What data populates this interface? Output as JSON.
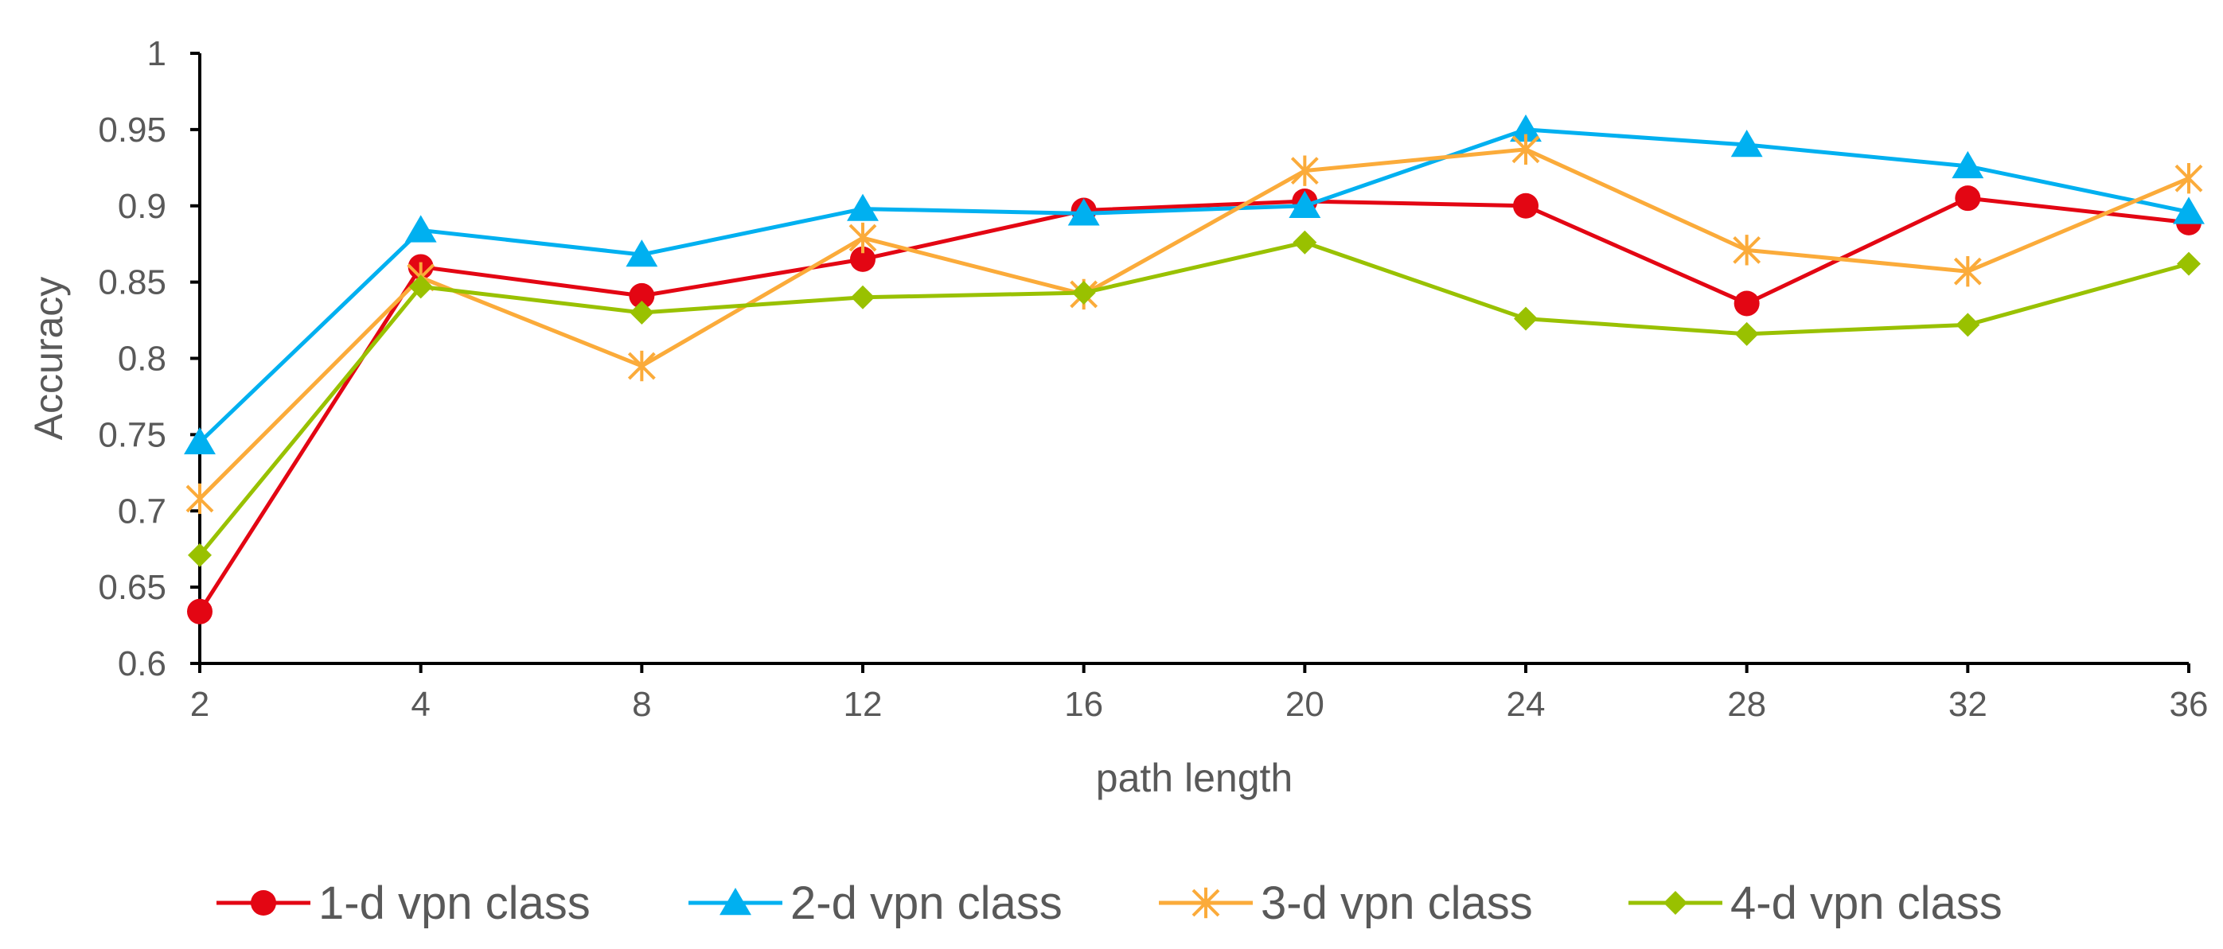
{
  "chart_data": {
    "type": "line",
    "title": "",
    "xlabel": "path length",
    "ylabel": "Accuracy",
    "x": [
      2,
      4,
      8,
      12,
      16,
      20,
      24,
      28,
      32,
      36
    ],
    "x_tick_labels": [
      "2",
      "4",
      "8",
      "12",
      "16",
      "20",
      "24",
      "28",
      "32",
      "36"
    ],
    "ylim": [
      0.6,
      1
    ],
    "y_ticks": [
      0.6,
      0.65,
      0.7,
      0.75,
      0.8,
      0.85,
      0.9,
      0.95,
      1
    ],
    "y_tick_labels": [
      "0.6",
      "0.65",
      "0.7",
      "0.75",
      "0.8",
      "0.85",
      "0.9",
      "0.95",
      "1"
    ],
    "grid": false,
    "legend_position": "bottom",
    "series": [
      {
        "name": "1-d vpn class",
        "color": "#e30613",
        "marker": "circle",
        "values": [
          0.634,
          0.86,
          0.841,
          0.865,
          0.897,
          0.903,
          0.9,
          0.836,
          0.905,
          0.889
        ]
      },
      {
        "name": "2-d vpn class",
        "color": "#00b0f0",
        "marker": "triangle",
        "values": [
          0.745,
          0.884,
          0.868,
          0.898,
          0.895,
          0.9,
          0.95,
          0.94,
          0.926,
          0.896
        ]
      },
      {
        "name": "3-d vpn class",
        "color": "#fbab3a",
        "marker": "star",
        "values": [
          0.708,
          0.853,
          0.795,
          0.879,
          0.842,
          0.923,
          0.937,
          0.871,
          0.857,
          0.918
        ]
      },
      {
        "name": "4-d vpn class",
        "color": "#99c100",
        "marker": "diamond",
        "values": [
          0.671,
          0.847,
          0.83,
          0.84,
          0.843,
          0.876,
          0.826,
          0.816,
          0.822,
          0.862
        ]
      }
    ]
  }
}
